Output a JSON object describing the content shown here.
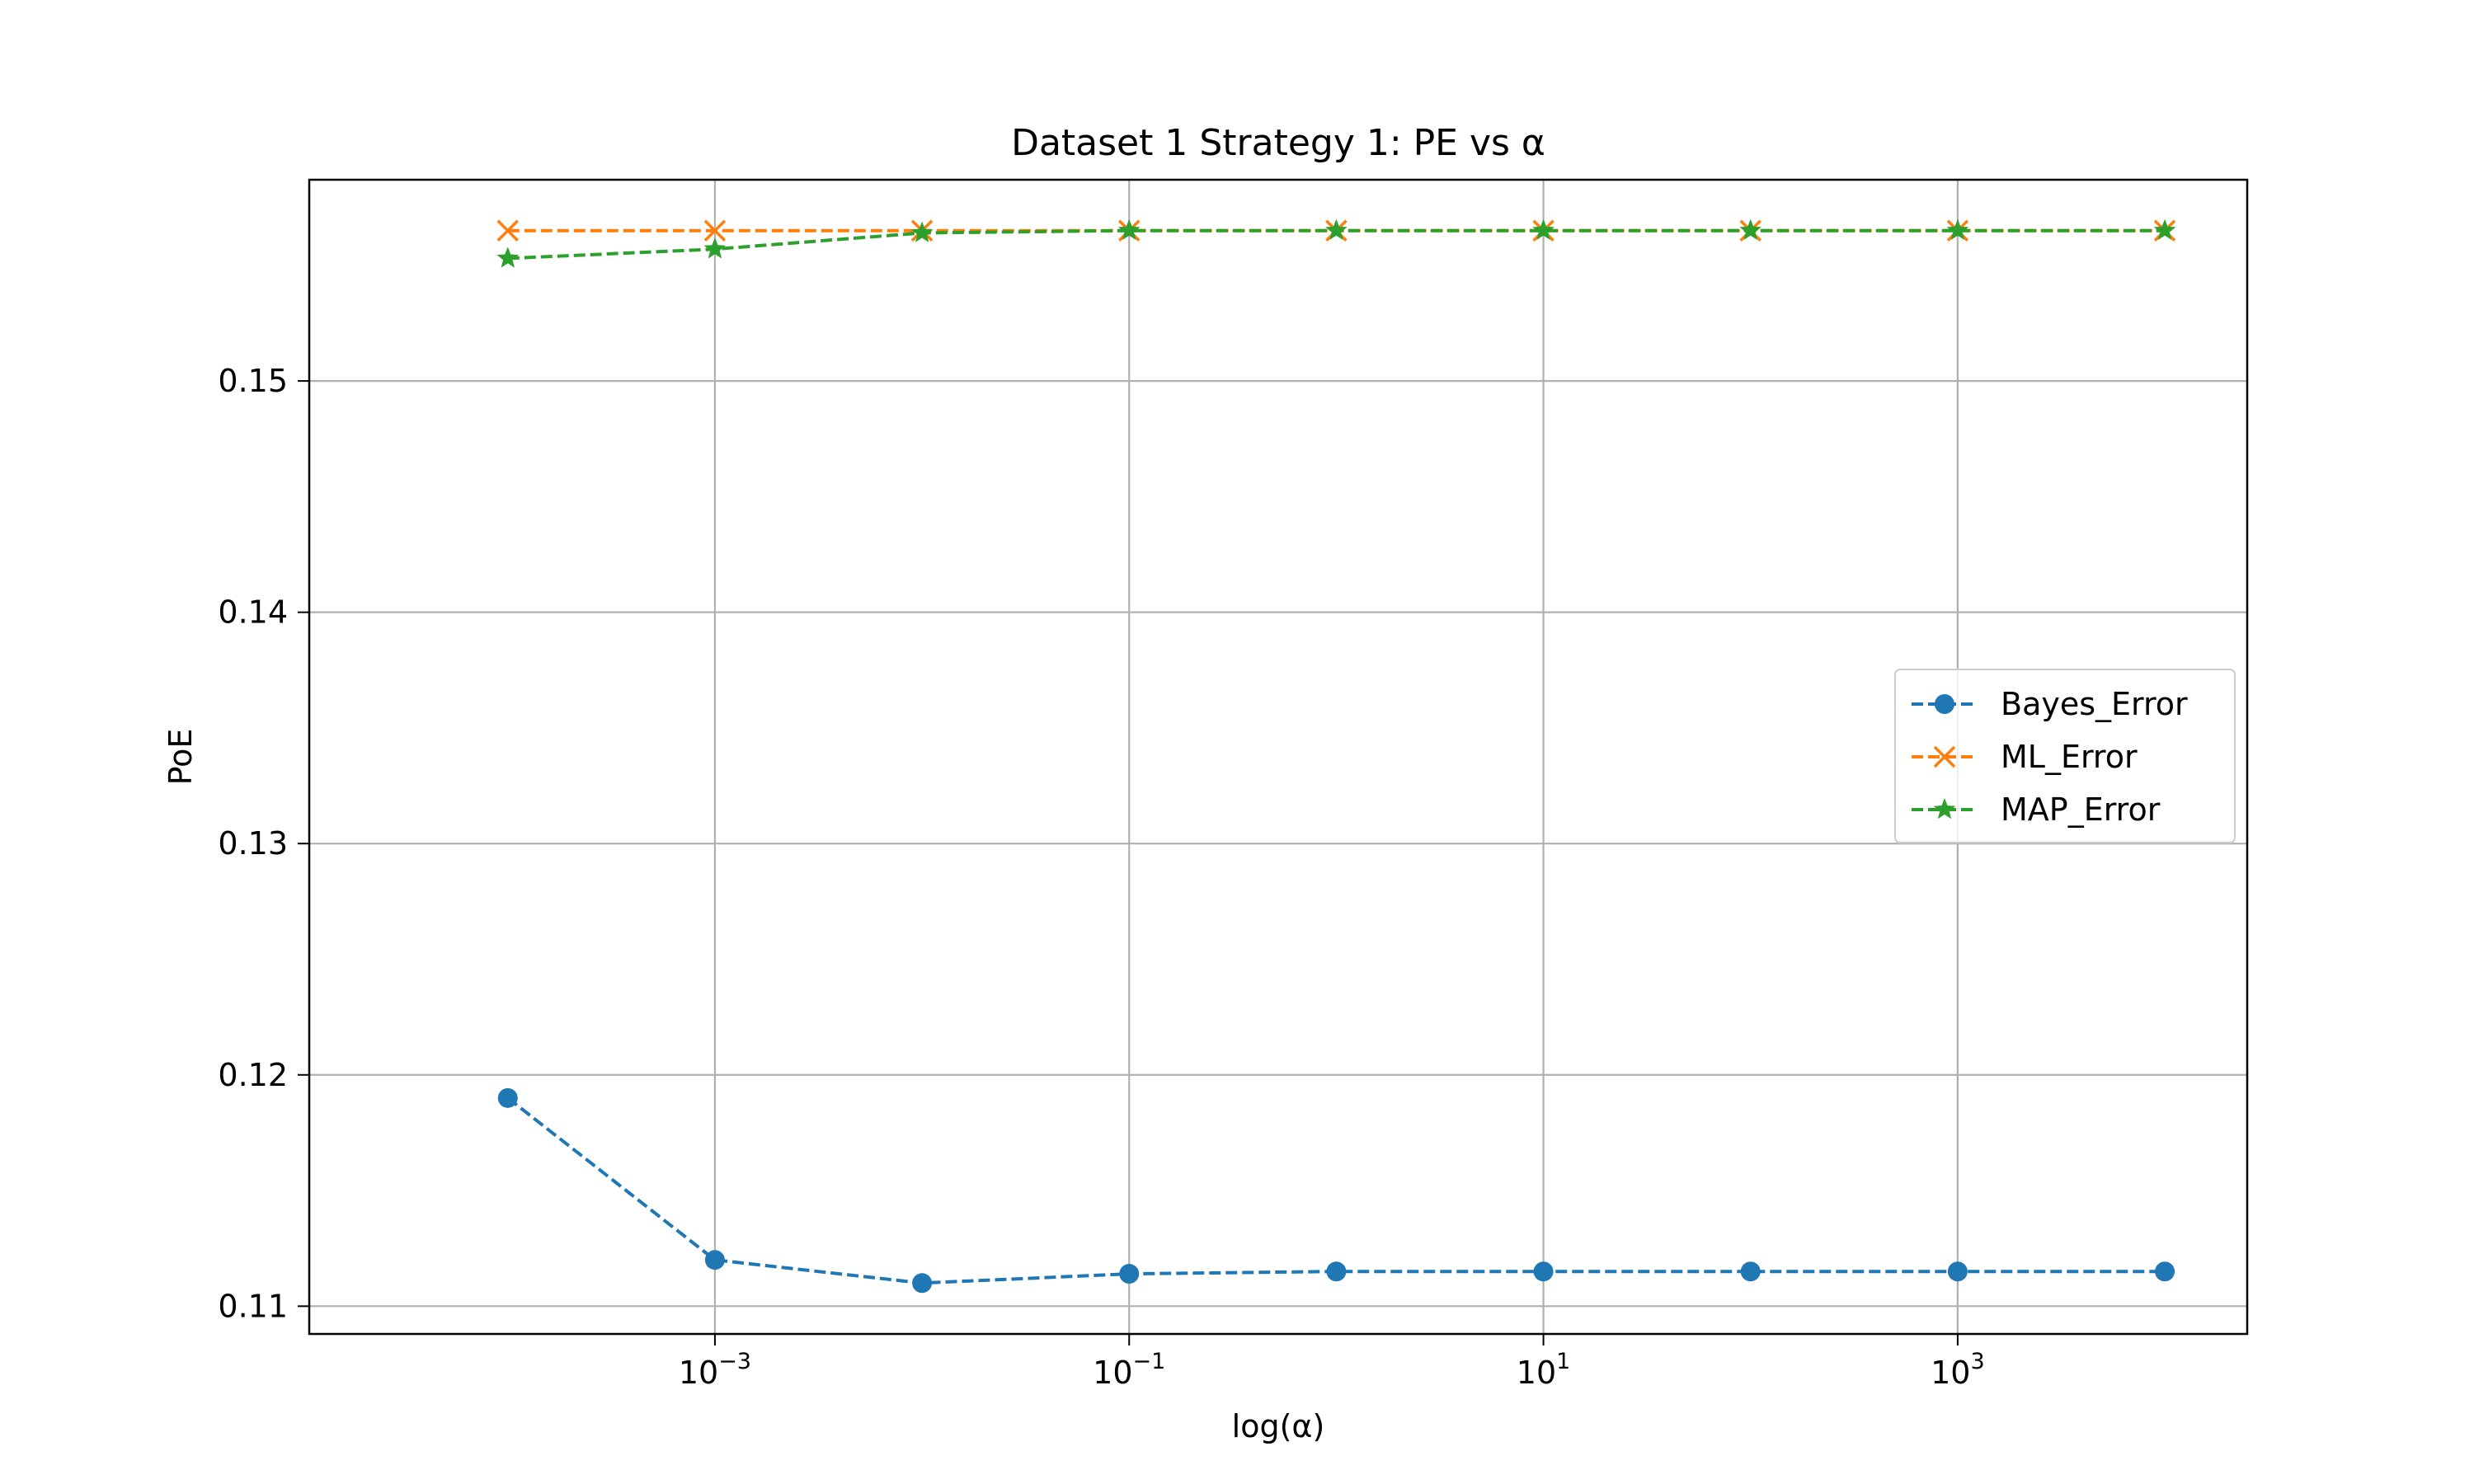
{
  "chart_data": {
    "type": "line",
    "title": "Dataset 1 Strategy 1: PE vs α",
    "xlabel": "log(α)",
    "ylabel": "PoE",
    "x_scale": "log",
    "x": [
      0.0001,
      0.001,
      0.01,
      0.1,
      1,
      10,
      100,
      1000,
      10000
    ],
    "xlim": [
      1.1e-05,
      25000
    ],
    "ylim": [
      0.1088,
      0.1587
    ],
    "x_ticks": [
      {
        "value": 0.001,
        "base": "10",
        "exp": "−3"
      },
      {
        "value": 0.1,
        "base": "10",
        "exp": "−1"
      },
      {
        "value": 10,
        "base": "10",
        "exp": "1"
      },
      {
        "value": 1000,
        "base": "10",
        "exp": "3"
      }
    ],
    "y_ticks": [
      {
        "value": 0.11,
        "label": "0.11"
      },
      {
        "value": 0.12,
        "label": "0.12"
      },
      {
        "value": 0.13,
        "label": "0.13"
      },
      {
        "value": 0.14,
        "label": "0.14"
      },
      {
        "value": 0.15,
        "label": "0.15"
      }
    ],
    "grid": true,
    "legend_position": "center-right",
    "series": [
      {
        "name": "Bayes_Error",
        "color": "#1f77b4",
        "marker": "circle",
        "line_style": "dashed",
        "values": [
          0.119,
          0.112,
          0.111,
          0.1114,
          0.1115,
          0.1115,
          0.1115,
          0.1115,
          0.1115
        ]
      },
      {
        "name": "ML_Error",
        "color": "#ff7f0e",
        "marker": "x",
        "line_style": "dashed",
        "values": [
          0.1565,
          0.1565,
          0.1565,
          0.1565,
          0.1565,
          0.1565,
          0.1565,
          0.1565,
          0.1565
        ]
      },
      {
        "name": "MAP_Error",
        "color": "#2ca02c",
        "marker": "star",
        "line_style": "dashed",
        "values": [
          0.1553,
          0.1557,
          0.1564,
          0.1565,
          0.1565,
          0.1565,
          0.1565,
          0.1565,
          0.1565
        ]
      }
    ]
  }
}
